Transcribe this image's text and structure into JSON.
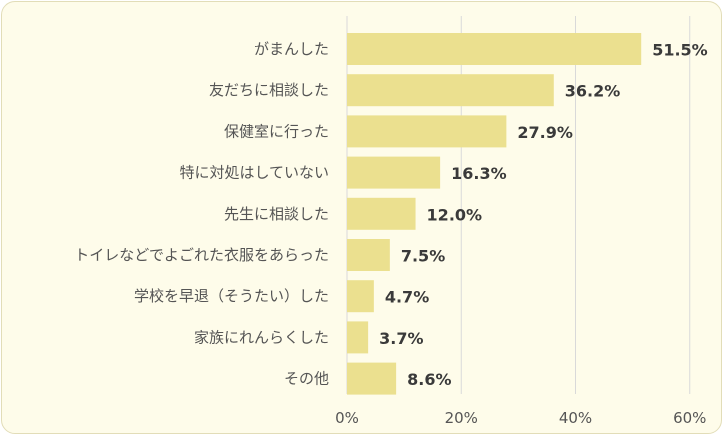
{
  "chart_data": {
    "type": "bar",
    "orientation": "horizontal",
    "categories": [
      "がまんした",
      "友だちに相談した",
      "保健室に行った",
      "特に対処はしていない",
      "先生に相談した",
      "トイレなどでよごれた衣服をあらった",
      "学校を早退（そうたい）した",
      "家族にれんらくした",
      "その他"
    ],
    "values": [
      51.5,
      36.2,
      27.9,
      16.3,
      12.0,
      7.5,
      4.7,
      3.7,
      8.6
    ],
    "value_labels": [
      "51.5%",
      "36.2%",
      "27.9%",
      "16.3%",
      "12.0%",
      "7.5%",
      "4.7%",
      "3.7%",
      "8.6%"
    ],
    "xlim": [
      0,
      60
    ],
    "xticks": [
      "0%",
      "20%",
      "40%",
      "60%"
    ],
    "grid": "vertical",
    "legend": "none",
    "colors": {
      "bar": "#ebe08f",
      "background": "#fefcea",
      "grid": "#d9d9d9",
      "text": "#555555",
      "value_text": "#3a3a3a"
    }
  }
}
